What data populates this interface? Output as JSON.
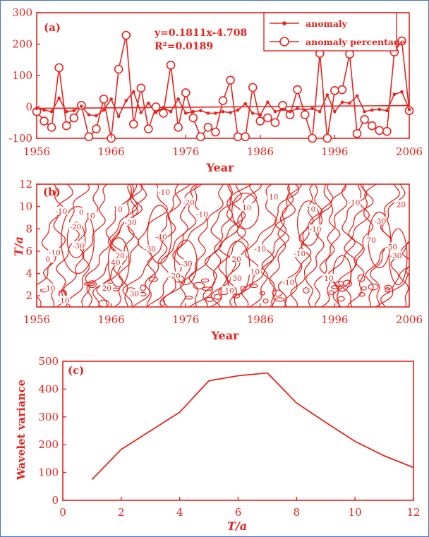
{
  "colors": {
    "ink": "#e8231d",
    "frame": "#4472c4",
    "background": "#ffffff"
  },
  "chart_data": [
    {
      "type": "line",
      "panel_label": "(a)",
      "xlabel": "Year",
      "ylabel": "",
      "xlim": [
        1956,
        2006
      ],
      "ylim": [
        -100,
        300
      ],
      "xticks": [
        1956,
        1966,
        1976,
        1986,
        1996,
        2006
      ],
      "yticks": [
        -100,
        0,
        100,
        200,
        300
      ],
      "legend": {
        "placement": "top-right"
      },
      "annotations": [
        "y=0.1811x-4.708",
        "R²=0.0189"
      ],
      "trend": {
        "slope": 0.1811,
        "intercept": -4.708
      },
      "x": [
        1956,
        1957,
        1958,
        1959,
        1960,
        1961,
        1962,
        1963,
        1964,
        1965,
        1966,
        1967,
        1968,
        1969,
        1970,
        1971,
        1972,
        1973,
        1974,
        1975,
        1976,
        1977,
        1978,
        1979,
        1980,
        1981,
        1982,
        1983,
        1984,
        1985,
        1986,
        1987,
        1988,
        1989,
        1990,
        1991,
        1992,
        1993,
        1994,
        1995,
        1996,
        1997,
        1998,
        1999,
        2000,
        2001,
        2002,
        2003,
        2004,
        2005,
        2006
      ],
      "series": [
        {
          "name": "anomaly",
          "marker": "filled-dot",
          "values": [
            -5,
            -10,
            -15,
            28,
            -15,
            -12,
            2,
            -25,
            -28,
            -10,
            25,
            -30,
            20,
            48,
            -18,
            12,
            -18,
            -2,
            -15,
            25,
            -20,
            -15,
            -12,
            -20,
            -20,
            -15,
            -18,
            -10,
            10,
            -20,
            -25,
            15,
            -15,
            -8,
            -15,
            -5,
            -10,
            -5,
            -15,
            38,
            -15,
            15,
            12,
            35,
            -15,
            -10,
            -8,
            -12,
            40,
            48,
            -8
          ]
        },
        {
          "name": "anomaly percentage",
          "marker": "open-circle",
          "values": [
            -15,
            -45,
            -65,
            125,
            -60,
            -35,
            5,
            -95,
            -70,
            25,
            -100,
            120,
            228,
            -55,
            60,
            -70,
            0,
            -20,
            133,
            -65,
            45,
            -35,
            -95,
            -65,
            -80,
            20,
            85,
            -95,
            -95,
            62,
            -45,
            -35,
            -50,
            5,
            -25,
            55,
            -25,
            -100,
            170,
            -100,
            52,
            55,
            168,
            -85,
            -40,
            -60,
            -75,
            -78,
            175,
            210,
            -12
          ]
        }
      ]
    },
    {
      "type": "heatmap",
      "subtype": "contour",
      "panel_label": "(b)",
      "xlabel": "Year",
      "ylabel": "T/a",
      "xlim": [
        1956,
        2006
      ],
      "ylim": [
        1,
        12
      ],
      "xticks": [
        1956,
        1966,
        1976,
        1986,
        1996,
        2006
      ],
      "yticks": [
        2,
        4,
        6,
        8,
        10,
        12
      ],
      "contour_labels": [
        {
          "text": "-10",
          "x": 1959.3,
          "y": 9.6
        },
        {
          "text": "0",
          "x": 1962.0,
          "y": 9.5
        },
        {
          "text": "10",
          "x": 1963.2,
          "y": 9.2
        },
        {
          "text": "-20",
          "x": 1961.2,
          "y": 8.2
        },
        {
          "text": "-30",
          "x": 1961.6,
          "y": 6.5
        },
        {
          "text": "-10",
          "x": 1958.4,
          "y": 5.9
        },
        {
          "text": "0",
          "x": 1957.5,
          "y": 5.3
        },
        {
          "text": "-10",
          "x": 1957.7,
          "y": 2.7
        },
        {
          "text": "-10",
          "x": 1959.6,
          "y": 1.6
        },
        {
          "text": "10",
          "x": 1966.9,
          "y": 9.8
        },
        {
          "text": "20",
          "x": 1967.2,
          "y": 5.6
        },
        {
          "text": "40",
          "x": 1966.6,
          "y": 5.0
        },
        {
          "text": "20",
          "x": 1965.4,
          "y": 2.7
        },
        {
          "text": "30",
          "x": 1969.1,
          "y": 2.2
        },
        {
          "text": "-30",
          "x": 1968.6,
          "y": 8.6
        },
        {
          "text": "-40",
          "x": 1972.7,
          "y": 7.3
        },
        {
          "text": "-10",
          "x": 1973.1,
          "y": 11.3
        },
        {
          "text": "-20",
          "x": 1976.4,
          "y": 10.4
        },
        {
          "text": "-10",
          "x": 1978.2,
          "y": 9.3
        },
        {
          "text": "-30",
          "x": 1971.2,
          "y": 6.2
        },
        {
          "text": "-30",
          "x": 1976.1,
          "y": 4.9
        },
        {
          "text": "-20",
          "x": 1974.5,
          "y": 3.8
        },
        {
          "text": "20",
          "x": 1982.8,
          "y": 5.3
        },
        {
          "text": "30",
          "x": 1982.9,
          "y": 3.6
        },
        {
          "text": "-10",
          "x": 1981.7,
          "y": 2.5
        },
        {
          "text": "10",
          "x": 1987.8,
          "y": 10.9
        },
        {
          "text": "10",
          "x": 1984.2,
          "y": 9.9
        },
        {
          "text": "-10",
          "x": 1986.0,
          "y": 6.2
        },
        {
          "text": "10",
          "x": 1985.3,
          "y": 4.2
        },
        {
          "text": "-10",
          "x": 1989.8,
          "y": 3.2
        },
        {
          "text": "10",
          "x": 1992.8,
          "y": 9.8
        },
        {
          "text": "-10",
          "x": 1993.4,
          "y": 8.0
        },
        {
          "text": "-10",
          "x": 1991.3,
          "y": 5.8
        },
        {
          "text": "10",
          "x": 1995.2,
          "y": 3.6
        },
        {
          "text": "-10",
          "x": 1998.6,
          "y": 10.4
        },
        {
          "text": "-30",
          "x": 2002.1,
          "y": 8.7
        },
        {
          "text": "-50",
          "x": 2003.6,
          "y": 6.4
        },
        {
          "text": "70",
          "x": 2000.9,
          "y": 7.0
        },
        {
          "text": "20",
          "x": 2004.9,
          "y": 10.2
        },
        {
          "text": "-30",
          "x": 2004.2,
          "y": 5.6
        }
      ]
    },
    {
      "type": "line",
      "panel_label": "(c)",
      "xlabel": "T/a",
      "ylabel": "Wavelet variance",
      "xlim": [
        0,
        12
      ],
      "ylim": [
        0,
        500
      ],
      "xticks": [
        0,
        2,
        4,
        6,
        8,
        10,
        12
      ],
      "yticks": [
        0,
        100,
        200,
        300,
        400,
        500
      ],
      "x": [
        1,
        2,
        3,
        4,
        5,
        6,
        7,
        8,
        9,
        10,
        11,
        12
      ],
      "series": [
        {
          "values": [
            75,
            183,
            250,
            317,
            430,
            448,
            458,
            350,
            280,
            212,
            160,
            118
          ]
        }
      ]
    }
  ]
}
